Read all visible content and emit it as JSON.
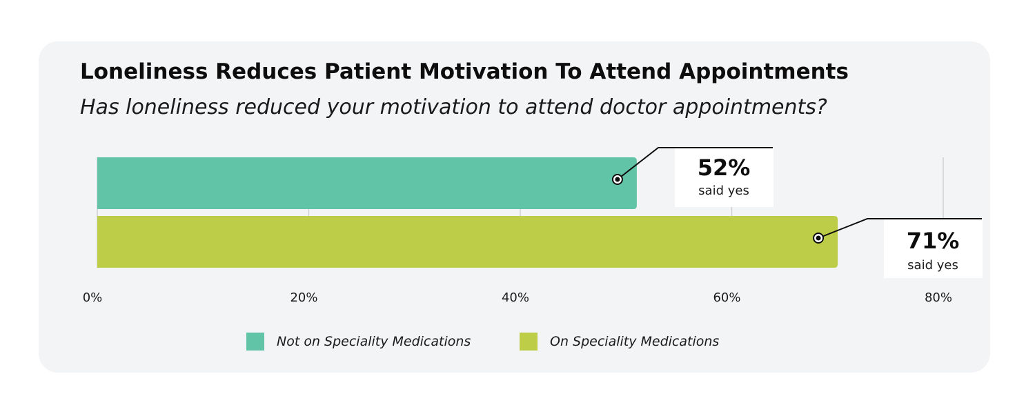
{
  "header": {
    "title": "Loneliness Reduces Patient Motivation To Attend Appointments",
    "subtitle": "Has loneliness reduced your motivation to attend doctor appointments?"
  },
  "chart_data": {
    "type": "bar",
    "orientation": "horizontal",
    "series": [
      {
        "name": "Not on Speciality Medications",
        "value": 52,
        "label_value": "52%",
        "label_text": "said yes",
        "color": "#62c4a6"
      },
      {
        "name": "On Speciality Medications",
        "value": 71,
        "label_value": "71%",
        "label_text": "said yes",
        "color": "#bdcd47"
      }
    ],
    "x_ticks": [
      "0%",
      "20%",
      "40%",
      "60%",
      "80%"
    ],
    "xlim": [
      0,
      80
    ],
    "grid": true,
    "legend_position": "bottom"
  },
  "legend": {
    "items": [
      {
        "label": "Not on Speciality Medications",
        "color": "#62c4a6"
      },
      {
        "label": "On Speciality Medications",
        "color": "#bdcd47"
      }
    ]
  }
}
